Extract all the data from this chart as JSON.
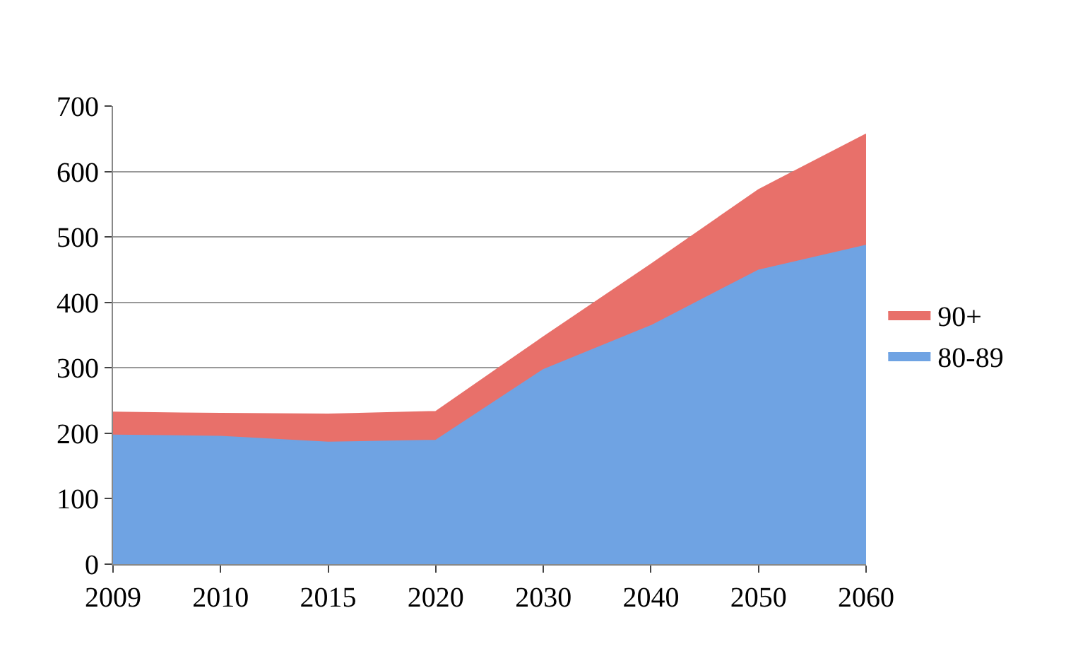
{
  "chart_data": {
    "type": "area",
    "stacked": true,
    "categories": [
      "2009",
      "2010",
      "2015",
      "2020",
      "2030",
      "2040",
      "2050",
      "2060"
    ],
    "series": [
      {
        "name": "80-89",
        "color": "#6fa3e3",
        "values": [
          197,
          195,
          186,
          189,
          297,
          364,
          449,
          487
        ]
      },
      {
        "name": "90+",
        "color": "#e8706a",
        "values": [
          35,
          35,
          43,
          44,
          50,
          94,
          123,
          170
        ]
      }
    ],
    "ylim": [
      0,
      700
    ],
    "yticks": [
      0,
      100,
      200,
      300,
      400,
      500,
      600,
      700
    ],
    "grid": "y",
    "legend": "right"
  }
}
